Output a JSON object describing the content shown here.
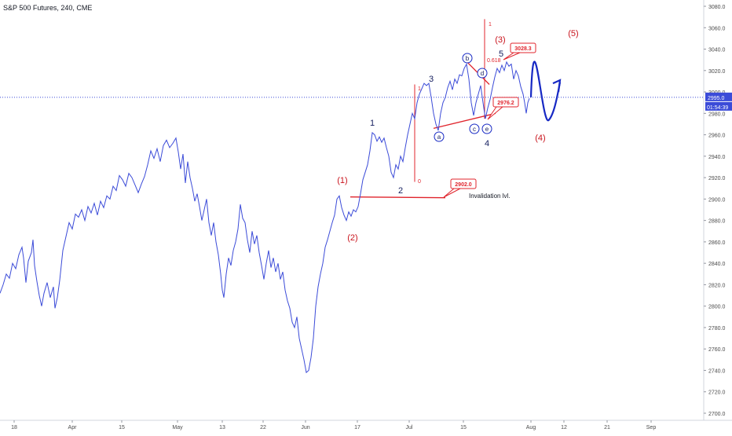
{
  "chart_data": {
    "type": "line",
    "title": "S&P 500 Futures, 240, CME",
    "xlabel": "",
    "ylabel": "",
    "x_ticks": [
      "18",
      "Apr",
      "15",
      "May",
      "13",
      "22",
      "Jun",
      "17",
      "Jul",
      "15",
      "Aug",
      "12",
      "21",
      "Sep"
    ],
    "y_ticks": [
      2700,
      2720,
      2740,
      2760,
      2780,
      2800,
      2820,
      2840,
      2860,
      2880,
      2900,
      2920,
      2940,
      2960,
      2980,
      3000,
      3020,
      3040,
      3060,
      3080
    ],
    "ylim": [
      2695,
      3088
    ],
    "grid": false,
    "series": [
      {
        "name": "",
        "color": "#3b4bd8",
        "values": [
          [
            0,
            2812
          ],
          [
            4,
            2820
          ],
          [
            8,
            2830
          ],
          [
            12,
            2826
          ],
          [
            16,
            2840
          ],
          [
            20,
            2835
          ],
          [
            24,
            2848
          ],
          [
            28,
            2855
          ],
          [
            30,
            2845
          ],
          [
            33,
            2822
          ],
          [
            36,
            2842
          ],
          [
            40,
            2850
          ],
          [
            42,
            2862
          ],
          [
            44,
            2838
          ],
          [
            47,
            2823
          ],
          [
            50,
            2810
          ],
          [
            53,
            2800
          ],
          [
            56,
            2812
          ],
          [
            60,
            2822
          ],
          [
            64,
            2808
          ],
          [
            68,
            2818
          ],
          [
            70,
            2798
          ],
          [
            73,
            2808
          ],
          [
            76,
            2824
          ],
          [
            78,
            2838
          ],
          [
            80,
            2852
          ],
          [
            84,
            2865
          ],
          [
            88,
            2878
          ],
          [
            92,
            2872
          ],
          [
            96,
            2886
          ],
          [
            100,
            2883
          ],
          [
            104,
            2890
          ],
          [
            108,
            2880
          ],
          [
            112,
            2893
          ],
          [
            116,
            2887
          ],
          [
            120,
            2896
          ],
          [
            124,
            2885
          ],
          [
            128,
            2898
          ],
          [
            132,
            2892
          ],
          [
            136,
            2903
          ],
          [
            140,
            2900
          ],
          [
            144,
            2912
          ],
          [
            148,
            2908
          ],
          [
            152,
            2922
          ],
          [
            156,
            2918
          ],
          [
            160,
            2912
          ],
          [
            164,
            2924
          ],
          [
            168,
            2920
          ],
          [
            172,
            2913
          ],
          [
            176,
            2906
          ],
          [
            180,
            2914
          ],
          [
            184,
            2921
          ],
          [
            188,
            2932
          ],
          [
            192,
            2945
          ],
          [
            196,
            2938
          ],
          [
            200,
            2947
          ],
          [
            204,
            2935
          ],
          [
            208,
            2950
          ],
          [
            212,
            2955
          ],
          [
            216,
            2948
          ],
          [
            220,
            2952
          ],
          [
            224,
            2957
          ],
          [
            227,
            2944
          ],
          [
            230,
            2928
          ],
          [
            233,
            2942
          ],
          [
            236,
            2915
          ],
          [
            239,
            2935
          ],
          [
            242,
            2920
          ],
          [
            245,
            2910
          ],
          [
            248,
            2898
          ],
          [
            251,
            2905
          ],
          [
            254,
            2893
          ],
          [
            257,
            2880
          ],
          [
            260,
            2890
          ],
          [
            263,
            2900
          ],
          [
            266,
            2878
          ],
          [
            269,
            2866
          ],
          [
            272,
            2878
          ],
          [
            275,
            2860
          ],
          [
            278,
            2848
          ],
          [
            281,
            2830
          ],
          [
            283,
            2815
          ],
          [
            285,
            2808
          ],
          [
            288,
            2830
          ],
          [
            291,
            2845
          ],
          [
            294,
            2838
          ],
          [
            297,
            2852
          ],
          [
            300,
            2860
          ],
          [
            303,
            2872
          ],
          [
            306,
            2895
          ],
          [
            309,
            2882
          ],
          [
            312,
            2878
          ],
          [
            315,
            2862
          ],
          [
            318,
            2850
          ],
          [
            321,
            2870
          ],
          [
            324,
            2858
          ],
          [
            327,
            2866
          ],
          [
            330,
            2850
          ],
          [
            333,
            2838
          ],
          [
            336,
            2825
          ],
          [
            339,
            2840
          ],
          [
            342,
            2852
          ],
          [
            345,
            2836
          ],
          [
            348,
            2845
          ],
          [
            351,
            2832
          ],
          [
            354,
            2840
          ],
          [
            357,
            2825
          ],
          [
            360,
            2832
          ],
          [
            363,
            2815
          ],
          [
            366,
            2805
          ],
          [
            369,
            2798
          ],
          [
            372,
            2785
          ],
          [
            375,
            2780
          ],
          [
            378,
            2790
          ],
          [
            381,
            2770
          ],
          [
            384,
            2760
          ],
          [
            387,
            2750
          ],
          [
            390,
            2738
          ],
          [
            393,
            2740
          ],
          [
            396,
            2752
          ],
          [
            399,
            2770
          ],
          [
            402,
            2800
          ],
          [
            405,
            2818
          ],
          [
            408,
            2830
          ],
          [
            411,
            2840
          ],
          [
            414,
            2855
          ],
          [
            417,
            2862
          ],
          [
            420,
            2870
          ],
          [
            423,
            2878
          ],
          [
            426,
            2885
          ],
          [
            429,
            2900
          ],
          [
            432,
            2903
          ],
          [
            435,
            2892
          ],
          [
            438,
            2885
          ],
          [
            441,
            2880
          ],
          [
            444,
            2888
          ],
          [
            447,
            2884
          ],
          [
            450,
            2890
          ],
          [
            453,
            2888
          ],
          [
            456,
            2893
          ],
          [
            459,
            2905
          ],
          [
            462,
            2918
          ],
          [
            465,
            2925
          ],
          [
            468,
            2932
          ],
          [
            471,
            2945
          ],
          [
            474,
            2962
          ],
          [
            477,
            2960
          ],
          [
            480,
            2954
          ],
          [
            483,
            2958
          ],
          [
            486,
            2953
          ],
          [
            489,
            2957
          ],
          [
            492,
            2948
          ],
          [
            495,
            2940
          ],
          [
            498,
            2925
          ],
          [
            501,
            2920
          ],
          [
            504,
            2932
          ],
          [
            507,
            2928
          ],
          [
            510,
            2940
          ],
          [
            513,
            2935
          ],
          [
            516,
            2948
          ],
          [
            519,
            2960
          ],
          [
            522,
            2970
          ],
          [
            525,
            2980
          ],
          [
            528,
            2975
          ],
          [
            531,
            2990
          ],
          [
            534,
            2998
          ],
          [
            537,
            3003
          ],
          [
            540,
            3008
          ],
          [
            543,
            3006
          ],
          [
            546,
            3008
          ],
          [
            549,
            2995
          ],
          [
            552,
            2980
          ],
          [
            555,
            2970
          ],
          [
            558,
            2964
          ],
          [
            561,
            2980
          ],
          [
            564,
            2990
          ],
          [
            567,
            2995
          ],
          [
            570,
            3004
          ],
          [
            573,
            3010
          ],
          [
            576,
            3002
          ],
          [
            579,
            3012
          ],
          [
            582,
            3008
          ],
          [
            585,
            3016
          ],
          [
            588,
            3015
          ],
          [
            591,
            3022
          ],
          [
            594,
            3026
          ],
          [
            597,
            3012
          ],
          [
            600,
            2990
          ],
          [
            603,
            2978
          ],
          [
            606,
            2990
          ],
          [
            609,
            2998
          ],
          [
            612,
            3006
          ],
          [
            615,
            2990
          ],
          [
            618,
            2975
          ],
          [
            621,
            2985
          ],
          [
            624,
            2993
          ],
          [
            627,
            3004
          ],
          [
            630,
            3014
          ],
          [
            633,
            3022
          ],
          [
            636,
            3018
          ],
          [
            639,
            3025
          ],
          [
            642,
            3020
          ],
          [
            645,
            3028
          ],
          [
            648,
            3024
          ],
          [
            651,
            3026
          ],
          [
            654,
            3012
          ],
          [
            657,
            3020
          ],
          [
            660,
            3015
          ],
          [
            663,
            3005
          ],
          [
            666,
            2998
          ],
          [
            668,
            2990
          ],
          [
            670,
            2980
          ],
          [
            672,
            2990
          ],
          [
            674,
            2994
          ]
        ]
      }
    ],
    "price_line": {
      "value": 2995.0,
      "label": "2995.0",
      "timer": "01:54:39",
      "color": "#3b4bd8"
    },
    "wave_labels": [
      {
        "text": "(1)",
        "color": "#c9141d"
      },
      {
        "text": "(2)",
        "color": "#c9141d"
      },
      {
        "text": "(3)",
        "color": "#c9141d"
      },
      {
        "text": "(4)",
        "color": "#c9141d"
      },
      {
        "text": "(5)",
        "color": "#c9141d"
      },
      {
        "text": "1",
        "color": "#131d5e"
      },
      {
        "text": "2",
        "color": "#131d5e"
      },
      {
        "text": "3",
        "color": "#131d5e"
      },
      {
        "text": "4",
        "color": "#131d5e"
      },
      {
        "text": "5",
        "color": "#131d5e"
      }
    ],
    "circled_labels": [
      "a",
      "b",
      "c",
      "d",
      "e"
    ],
    "fib_labels": [
      "0",
      "1",
      "1",
      "0.618"
    ],
    "callouts": [
      {
        "text": "2902.0",
        "value": 2902.0
      },
      {
        "text": "2976.2",
        "value": 2976.2
      },
      {
        "text": "3028.3",
        "value": 3028.3
      }
    ],
    "annotations": [
      "Invalidation lvl."
    ]
  }
}
